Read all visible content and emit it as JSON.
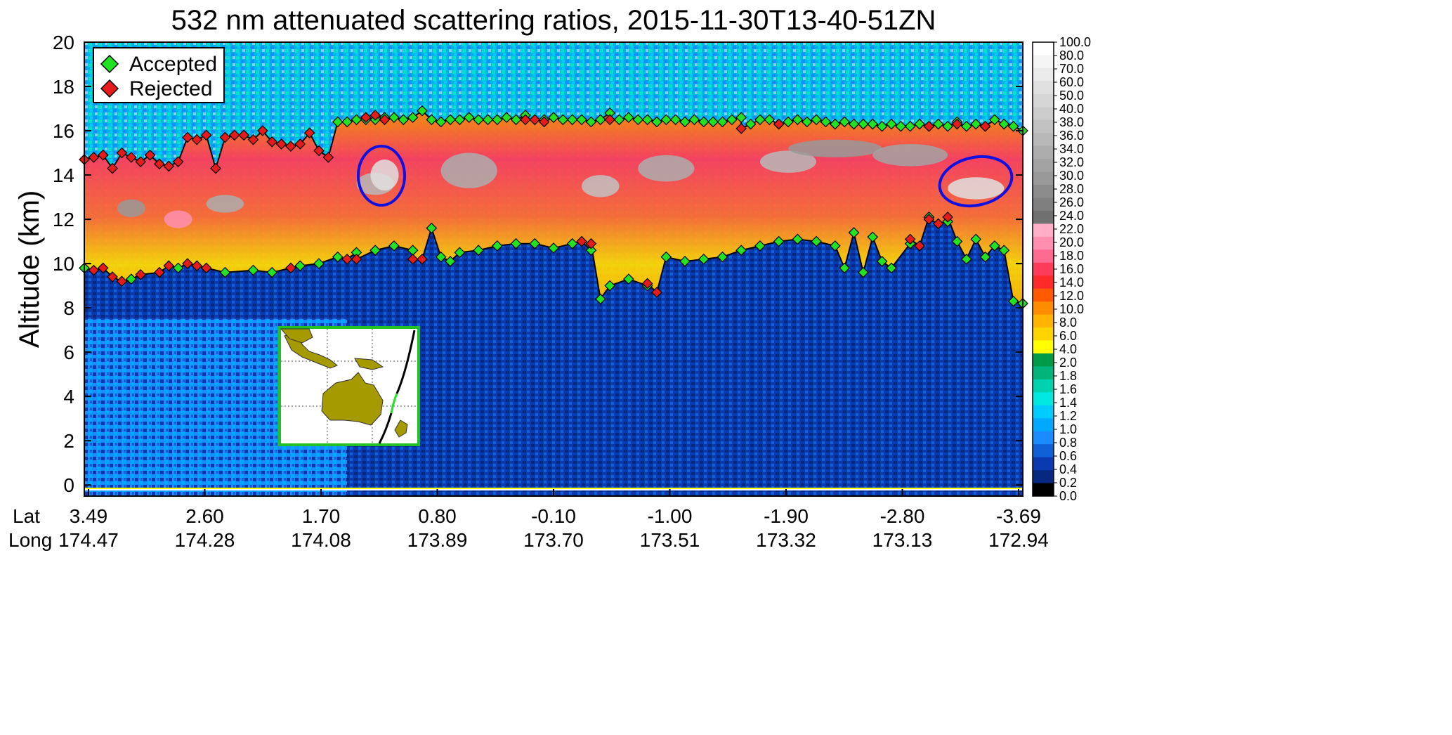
{
  "chart_data": {
    "type": "heatmap",
    "title": "532 nm attenuated scattering ratios, 2015-11-30T13-40-51ZN",
    "ylabel": "Altitude (km)",
    "ylim": [
      -0.5,
      20
    ],
    "yticks": [
      "0",
      "2",
      "4",
      "6",
      "8",
      "10",
      "12",
      "14",
      "16",
      "18",
      "20"
    ],
    "x_row_labels": [
      "Lat",
      "Long"
    ],
    "lat_ticks": [
      "3.49",
      "2.60",
      "1.70",
      "0.80",
      "-0.10",
      "-1.00",
      "-1.90",
      "-2.80",
      "-3.69"
    ],
    "long_ticks": [
      "174.47",
      "174.28",
      "174.08",
      "173.89",
      "173.70",
      "173.51",
      "173.32",
      "173.13",
      "172.94"
    ],
    "colorbar_labels": [
      "100.0",
      "80.0",
      "70.0",
      "60.0",
      "50.0",
      "40.0",
      "38.0",
      "36.0",
      "34.0",
      "32.0",
      "30.0",
      "28.0",
      "26.0",
      "24.0",
      "22.0",
      "20.0",
      "18.0",
      "16.0",
      "14.0",
      "12.0",
      "10.0",
      "8.0",
      "6.0",
      "4.0",
      "2.0",
      "1.8",
      "1.6",
      "1.4",
      "1.2",
      "1.0",
      "0.8",
      "0.6",
      "0.4",
      "0.2",
      "0.0"
    ],
    "colorbar_colors": [
      "#ffffff",
      "#f5f5f5",
      "#ebebeb",
      "#e0e0e0",
      "#d6d6d6",
      "#cccccc",
      "#c2c2c2",
      "#b8b8b8",
      "#adadad",
      "#a3a3a3",
      "#999999",
      "#8c8c8c",
      "#7f7f7f",
      "#707070",
      "#ffb0c8",
      "#ff8fb0",
      "#ff6a90",
      "#ff3c5a",
      "#ff2a2a",
      "#ff5a00",
      "#ff8c00",
      "#ffb400",
      "#ffd400",
      "#ffff00",
      "#009b48",
      "#00b47a",
      "#00d2b0",
      "#00e8e0",
      "#00ccff",
      "#00a8ff",
      "#1a8cff",
      "#1060d8",
      "#0a3ab0",
      "#062880",
      "#000000"
    ],
    "legend": [
      {
        "label": "Accepted",
        "color": "#22e322"
      },
      {
        "label": "Rejected",
        "color": "#e51a1a"
      }
    ],
    "legend_position": "top-left",
    "series": [
      {
        "name": "Accepted",
        "role": "upper boundary (cloud top)",
        "x": [
          0.27,
          0.28,
          0.29,
          0.3,
          0.31,
          0.32,
          0.33,
          0.34,
          0.35,
          0.36,
          0.37,
          0.38,
          0.39,
          0.4,
          0.41,
          0.42,
          0.43,
          0.44,
          0.45,
          0.46,
          0.47,
          0.48,
          0.49,
          0.5,
          0.51,
          0.52,
          0.53,
          0.54,
          0.55,
          0.56,
          0.57,
          0.58,
          0.59,
          0.6,
          0.61,
          0.62,
          0.63,
          0.64,
          0.65,
          0.66,
          0.67,
          0.68,
          0.69,
          0.7,
          0.71,
          0.72,
          0.73,
          0.74,
          0.75,
          0.76,
          0.77,
          0.78,
          0.79,
          0.8,
          0.81,
          0.82,
          0.83,
          0.84,
          0.85,
          0.86,
          0.87,
          0.88,
          0.89,
          0.9,
          0.91,
          0.92,
          0.93,
          0.94,
          0.95,
          0.96,
          0.97,
          0.98,
          0.99,
          1.0
        ],
        "y": [
          16.4,
          16.4,
          16.5,
          16.5,
          16.5,
          16.6,
          16.6,
          16.5,
          16.6,
          16.9,
          16.5,
          16.4,
          16.5,
          16.5,
          16.6,
          16.5,
          16.5,
          16.5,
          16.6,
          16.5,
          16.7,
          16.5,
          16.5,
          16.6,
          16.5,
          16.5,
          16.5,
          16.4,
          16.5,
          16.8,
          16.5,
          16.6,
          16.5,
          16.5,
          16.4,
          16.5,
          16.5,
          16.4,
          16.5,
          16.4,
          16.4,
          16.4,
          16.5,
          16.6,
          16.3,
          16.5,
          16.5,
          16.3,
          16.4,
          16.5,
          16.4,
          16.5,
          16.4,
          16.3,
          16.4,
          16.3,
          16.3,
          16.3,
          16.2,
          16.3,
          16.2,
          16.2,
          16.3,
          16.2,
          16.3,
          16.2,
          16.4,
          16.2,
          16.3,
          16.2,
          16.5,
          16.3,
          16.2,
          16.0
        ]
      },
      {
        "name": "Rejected",
        "role": "upper boundary (cloud top)",
        "x": [
          0.0,
          0.01,
          0.02,
          0.03,
          0.04,
          0.05,
          0.06,
          0.07,
          0.08,
          0.09,
          0.1,
          0.11,
          0.12,
          0.13,
          0.14,
          0.15,
          0.16,
          0.17,
          0.18,
          0.19,
          0.2,
          0.21,
          0.22,
          0.23,
          0.24,
          0.25,
          0.26,
          0.3,
          0.31,
          0.32,
          0.47,
          0.48,
          0.49,
          0.56,
          0.7,
          0.74,
          0.9,
          0.93,
          0.96
        ],
        "y": [
          14.7,
          14.8,
          14.9,
          14.3,
          15.0,
          14.8,
          14.6,
          14.9,
          14.5,
          14.4,
          14.6,
          15.7,
          15.6,
          15.8,
          14.3,
          15.7,
          15.8,
          15.8,
          15.6,
          16.0,
          15.5,
          15.4,
          15.3,
          15.4,
          15.9,
          15.1,
          14.8,
          16.6,
          16.7,
          16.5,
          16.5,
          16.5,
          16.4,
          16.5,
          16.1,
          16.3,
          16.2,
          16.3,
          16.2
        ]
      },
      {
        "name": "Accepted",
        "role": "lower boundary (cloud base)",
        "x": [
          0.0,
          0.05,
          0.1,
          0.15,
          0.18,
          0.2,
          0.23,
          0.25,
          0.27,
          0.29,
          0.31,
          0.33,
          0.35,
          0.37,
          0.38,
          0.39,
          0.4,
          0.42,
          0.44,
          0.46,
          0.48,
          0.5,
          0.52,
          0.54,
          0.55,
          0.56,
          0.58,
          0.6,
          0.62,
          0.64,
          0.66,
          0.68,
          0.7,
          0.72,
          0.74,
          0.76,
          0.78,
          0.8,
          0.81,
          0.82,
          0.83,
          0.84,
          0.85,
          0.86,
          0.88,
          0.9,
          0.92,
          0.93,
          0.94,
          0.95,
          0.96,
          0.97,
          0.98,
          0.99,
          1.0
        ],
        "y": [
          9.8,
          9.3,
          9.8,
          9.6,
          9.7,
          9.6,
          9.9,
          10.0,
          10.3,
          10.5,
          10.6,
          10.8,
          10.6,
          11.6,
          10.3,
          10.1,
          10.5,
          10.6,
          10.8,
          10.9,
          10.9,
          10.7,
          10.9,
          10.6,
          8.4,
          9.0,
          9.3,
          9.0,
          10.3,
          10.1,
          10.2,
          10.3,
          10.6,
          10.8,
          11.0,
          11.1,
          11.0,
          10.8,
          9.8,
          11.4,
          9.6,
          11.2,
          10.1,
          9.8,
          10.9,
          12.1,
          11.9,
          11.0,
          10.2,
          11.1,
          10.3,
          10.8,
          10.6,
          8.3,
          8.2
        ]
      },
      {
        "name": "Rejected",
        "role": "lower boundary (cloud base)",
        "x": [
          0.01,
          0.02,
          0.03,
          0.04,
          0.06,
          0.08,
          0.09,
          0.11,
          0.12,
          0.13,
          0.22,
          0.28,
          0.29,
          0.35,
          0.36,
          0.53,
          0.54,
          0.6,
          0.61,
          0.88,
          0.89,
          0.9,
          0.91,
          0.92
        ],
        "y": [
          9.7,
          9.8,
          9.4,
          9.2,
          9.5,
          9.6,
          9.9,
          10.0,
          9.9,
          9.8,
          9.8,
          10.2,
          10.2,
          10.2,
          10.2,
          11.0,
          10.9,
          9.1,
          8.7,
          11.1,
          10.8,
          12.0,
          11.8,
          12.1
        ]
      }
    ],
    "grid": false
  },
  "annotations": {
    "ellipses_color": "#1010e0",
    "inset_map": {
      "border_color": "#22c022",
      "land_color": "#a59a00",
      "track_colors": [
        "#000000",
        "#22e322"
      ]
    }
  }
}
